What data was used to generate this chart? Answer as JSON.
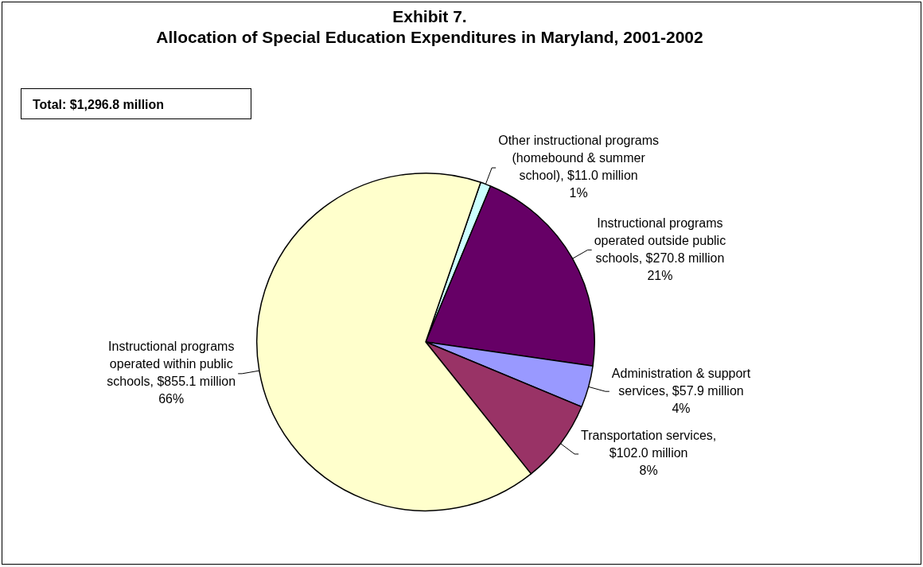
{
  "chart_data": {
    "type": "pie",
    "title": "Exhibit 7.",
    "subtitle": "Allocation of Special Education Expenditures in Maryland, 2001-2002",
    "categories": [
      "Other instructional programs (homebound & summer school), $11.0 million",
      "Instructional programs operated outside public schools, $270.8 million",
      "Administration & support services, $57.9 million",
      "Transportation services, $102.0 million",
      "Instructional programs operated within public schools, $855.1 million"
    ],
    "values": [
      1,
      21,
      4,
      8,
      66
    ],
    "value_labels": [
      "1%",
      "21%",
      "4%",
      "8%",
      "66%"
    ],
    "colors": [
      "#ccffff",
      "#660066",
      "#9999ff",
      "#993366",
      "#ffffcc"
    ],
    "annotations": [
      "Total: $1,296.8 million"
    ]
  }
}
